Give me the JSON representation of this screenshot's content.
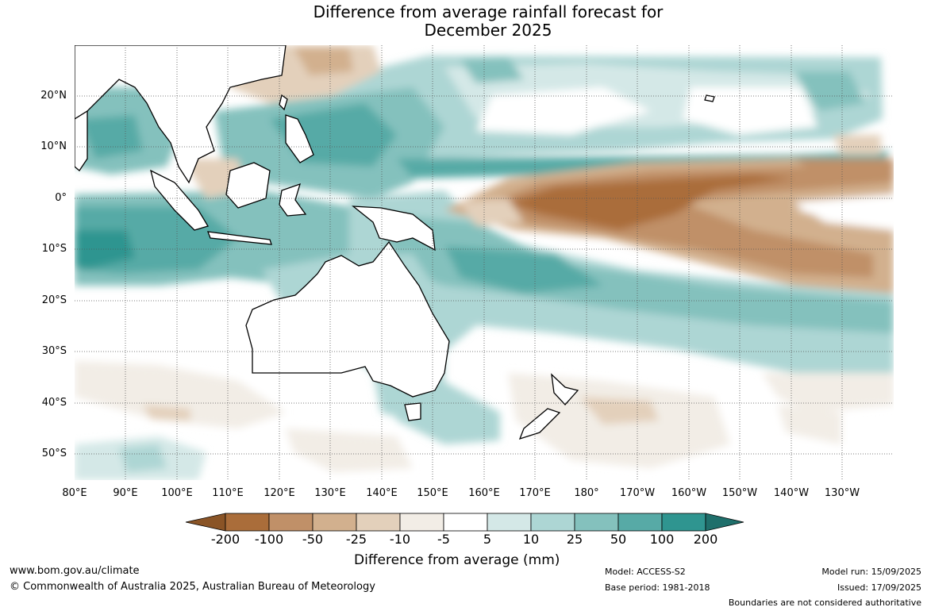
{
  "title_line1": "Difference from average rainfall forecast for",
  "title_line2": "December 2025",
  "lat_labels": [
    "20°N",
    "10°N",
    "0°",
    "10°S",
    "20°S",
    "30°S",
    "40°S",
    "50°S"
  ],
  "lon_labels": [
    "80°E",
    "90°E",
    "100°E",
    "110°E",
    "120°E",
    "130°E",
    "140°E",
    "150°E",
    "160°E",
    "170°E",
    "180°",
    "170°W",
    "160°W",
    "150°W",
    "140°W",
    "130°W"
  ],
  "colorbar": {
    "labels": [
      "-200",
      "-100",
      "-50",
      "-25",
      "-10",
      "-5",
      "5",
      "10",
      "25",
      "50",
      "100",
      "200"
    ],
    "colors": [
      "#8a5426",
      "#aa6d3a",
      "#c09068",
      "#d2b08e",
      "#e3d0bb",
      "#f2ede6",
      "#ffffff",
      "#d4e8e7",
      "#add6d4",
      "#84c1bd",
      "#57aaa6",
      "#2f9590",
      "#1f6f6b"
    ],
    "title": "Difference from average (mm)"
  },
  "footer": {
    "website": "www.bom.gov.au/climate",
    "copyright": "© Commonwealth of Australia 2025, Australian Bureau of Meteorology",
    "model": "Model: ACCESS-S2",
    "base_period": "Base period: 1981-2018",
    "model_run": "Model run: 15/09/2025",
    "issued": "Issued: 17/09/2025",
    "disclaimer": "Boundaries are not considered authoritative"
  }
}
